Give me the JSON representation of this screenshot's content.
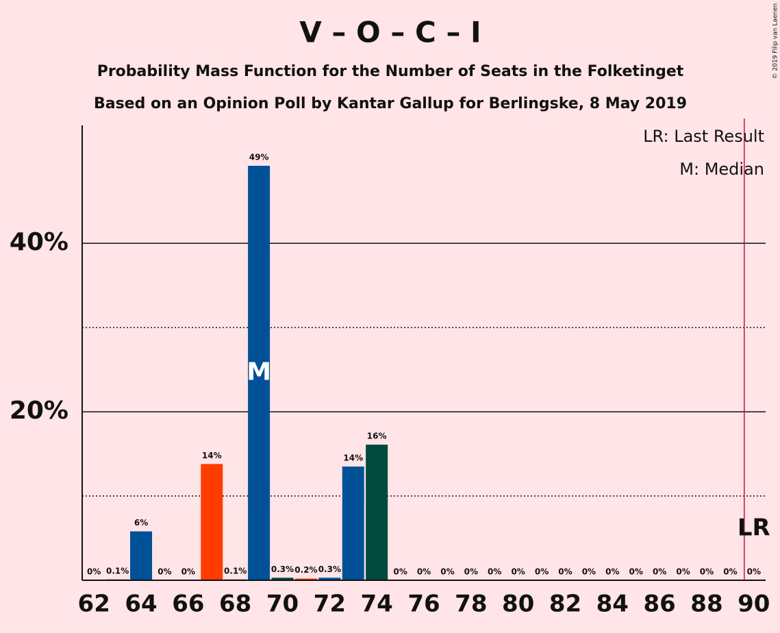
{
  "chart_data": {
    "type": "bar",
    "title": "V – O – C – I",
    "subtitles": [
      "Probability Mass Function for the Number of Seats in the Folketinget",
      "Based on an Opinion Poll by Kantar Gallup for Berlingske, 8 May 2019"
    ],
    "x": [
      62,
      63,
      64,
      65,
      66,
      67,
      68,
      69,
      70,
      71,
      72,
      73,
      74,
      75,
      76,
      77,
      78,
      79,
      80,
      81,
      82,
      83,
      84,
      85,
      86,
      87,
      88,
      89,
      90
    ],
    "values": [
      0,
      0.1,
      5.8,
      0,
      0,
      13.8,
      0.1,
      49.2,
      0.3,
      0.2,
      0.3,
      13.5,
      16.1,
      0,
      0,
      0,
      0,
      0,
      0,
      0,
      0,
      0,
      0,
      0,
      0,
      0,
      0,
      0,
      0
    ],
    "value_labels": [
      "0%",
      "0.1%",
      "6%",
      "0%",
      "0%",
      "14%",
      "0.1%",
      "49%",
      "0.3%",
      "0.2%",
      "0.3%",
      "14%",
      "16%",
      "0%",
      "0%",
      "0%",
      "0%",
      "0%",
      "0%",
      "0%",
      "0%",
      "0%",
      "0%",
      "0%",
      "0%",
      "0%",
      "0%",
      "0%",
      "0%"
    ],
    "colors": [
      "#005196",
      "#005196",
      "#005196",
      "#005196",
      "#005196",
      "#ff3c00",
      "#005196",
      "#005196",
      "#024a3e",
      "#ff3c00",
      "#005196",
      "#005196",
      "#024a3e",
      "#005196",
      "#005196",
      "#005196",
      "#005196",
      "#005196",
      "#005196",
      "#005196",
      "#005196",
      "#005196",
      "#005196",
      "#005196",
      "#005196",
      "#005196",
      "#005196",
      "#005196",
      "#005196"
    ],
    "xlim": [
      61.5,
      90.5
    ],
    "xticks": [
      62,
      64,
      66,
      68,
      70,
      72,
      74,
      76,
      78,
      80,
      82,
      84,
      86,
      88,
      90
    ],
    "ylim": [
      0,
      54
    ],
    "yticks": [
      {
        "value": 20,
        "label": "20%"
      },
      {
        "value": 40,
        "label": "40%"
      }
    ],
    "minor_yticks": [
      10,
      30
    ],
    "grid": true,
    "median": 69,
    "median_label": "M",
    "last_result": 90,
    "last_result_label": "LR",
    "legend": [
      "LR: Last Result",
      "M: Median"
    ],
    "copyright": "© 2019 Filip van Laenen"
  }
}
